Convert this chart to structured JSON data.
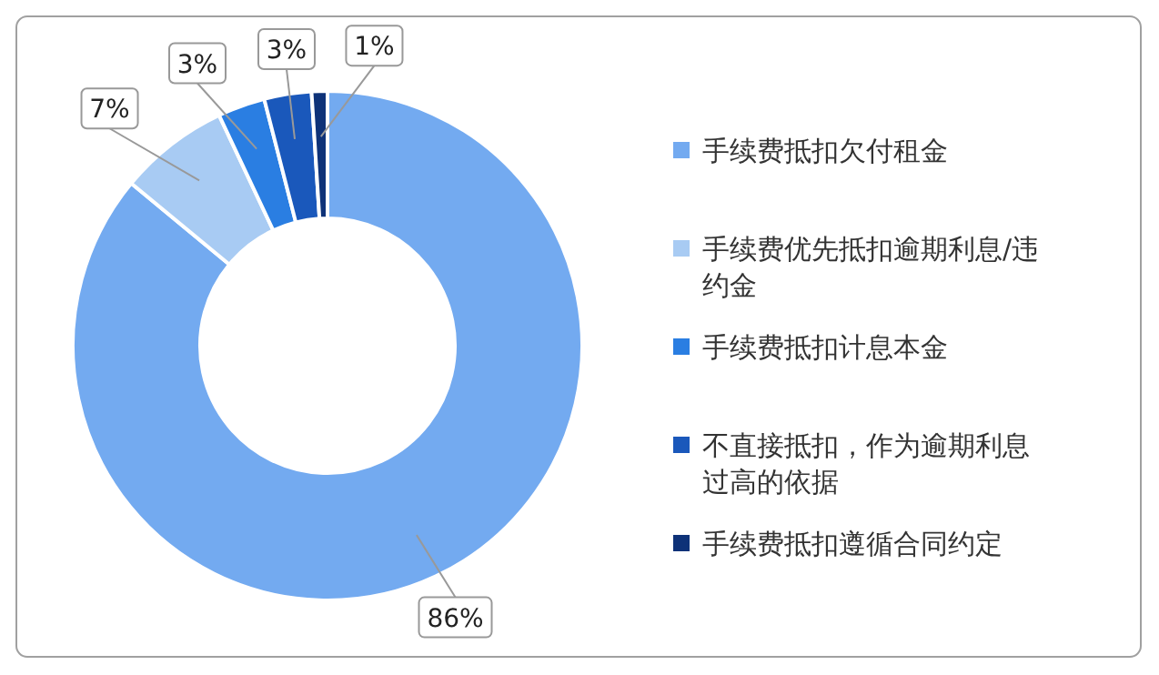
{
  "chart_data": {
    "type": "donut",
    "categories": [
      "手续费抵扣欠付租金",
      "手续费优先抵扣逾期利息/违约金",
      "手续费抵扣计息本金",
      "不直接抵扣，作为逾期利息过高的依据",
      "手续费抵扣遵循合同约定"
    ],
    "values": [
      86,
      7,
      3,
      3,
      1
    ],
    "value_labels": [
      "86%",
      "7%",
      "3%",
      "3%",
      "1%"
    ],
    "colors": [
      "#73aaf0",
      "#a8cbf3",
      "#2a7ee2",
      "#1a58bb",
      "#0e3278"
    ],
    "legend": "right"
  }
}
